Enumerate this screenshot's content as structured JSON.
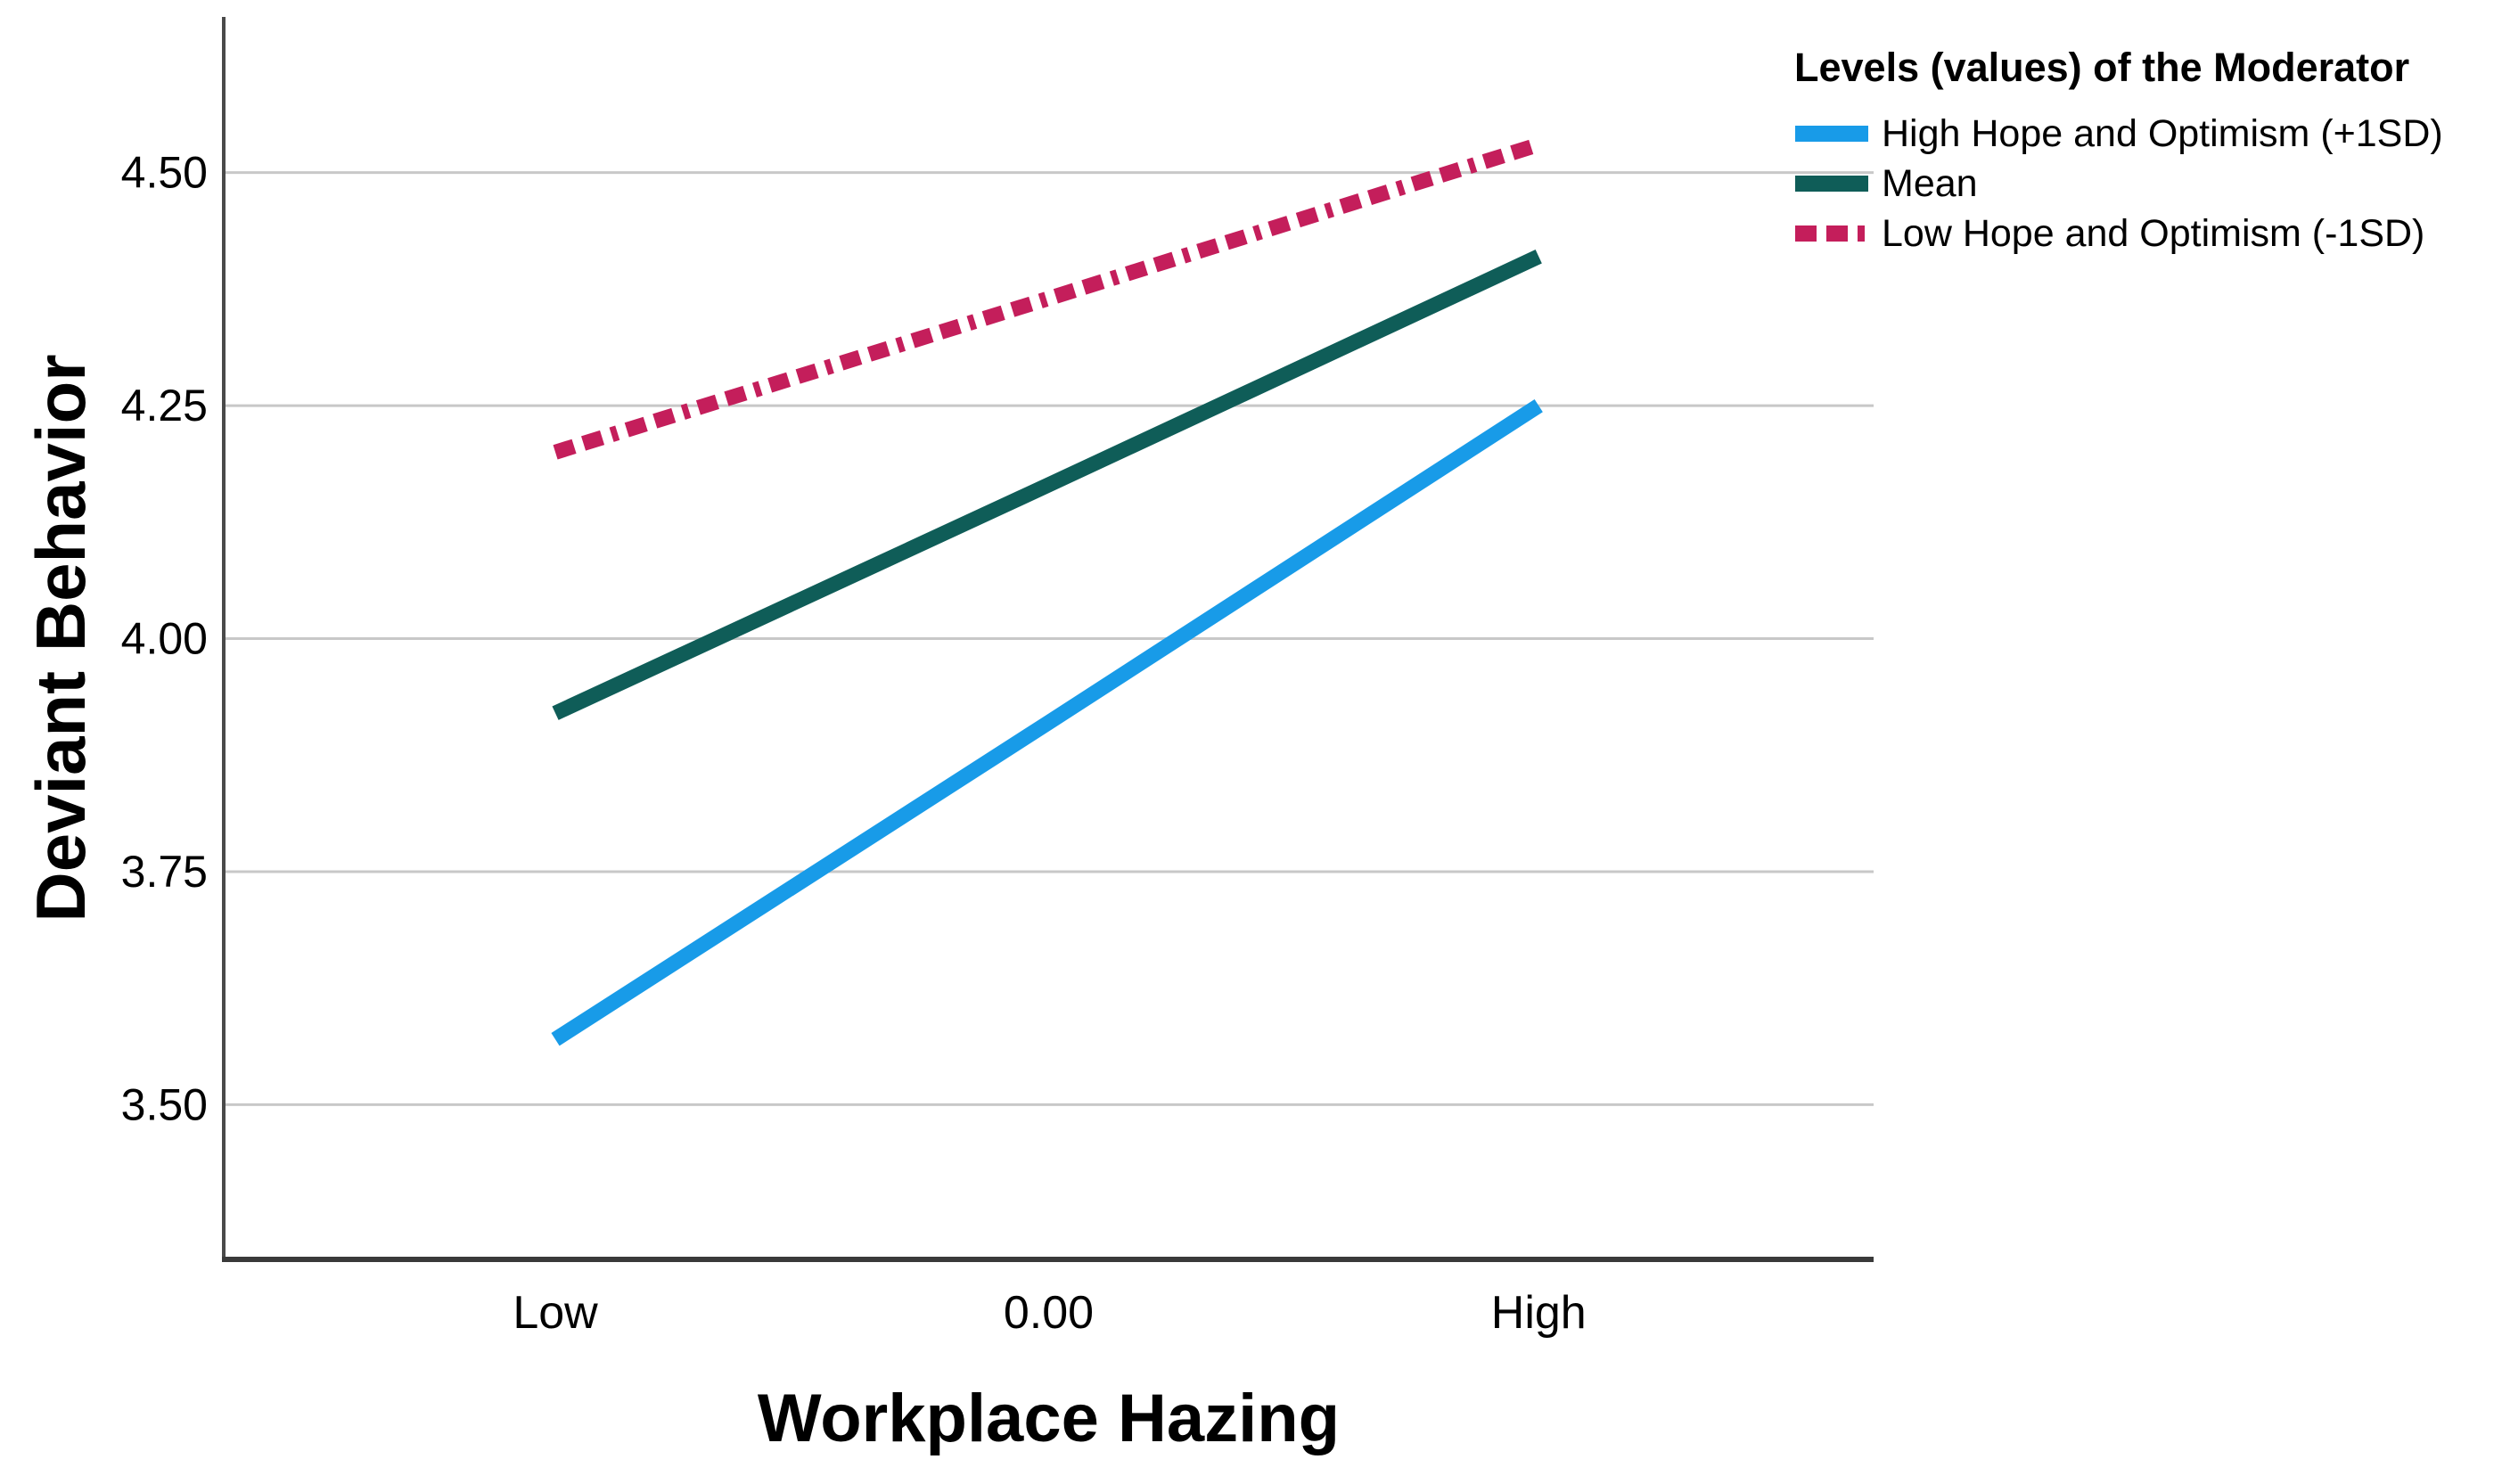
{
  "background": "#FFFFFF",
  "chart_data": {
    "type": "line",
    "title": "",
    "xlabel": "Workplace Hazing",
    "ylabel": "Deviant Behavior",
    "categories": [
      "Low",
      "0.00",
      "High"
    ],
    "ytick_labels": [
      "3.50",
      "3.75",
      "4.00",
      "4.25",
      "4.50"
    ],
    "ytick_values": [
      3.5,
      3.75,
      4.0,
      4.25,
      4.5
    ],
    "ylim": [
      3.334,
      4.667
    ],
    "grid": "horizontal-only",
    "grid_color": "#C8C8C8",
    "axis_color": "#3A3A3A",
    "text_color": "#000000",
    "legend": {
      "title": "Levels (values) of the Moderator",
      "position": "top-right"
    },
    "series": [
      {
        "name": "High Hope and Optimism (+1SD)",
        "color": "#189BE8",
        "line_style": "solid",
        "values": [
          3.57,
          3.91,
          4.25
        ]
      },
      {
        "name": "Mean",
        "color": "#0F5D58",
        "line_style": "solid",
        "values": [
          3.92,
          4.165,
          4.41
        ]
      },
      {
        "name": "Low Hope and Optimism (-1SD)",
        "color": "#C41E5B",
        "line_style": "dashed",
        "values": [
          4.2,
          4.365,
          4.53
        ]
      }
    ]
  }
}
